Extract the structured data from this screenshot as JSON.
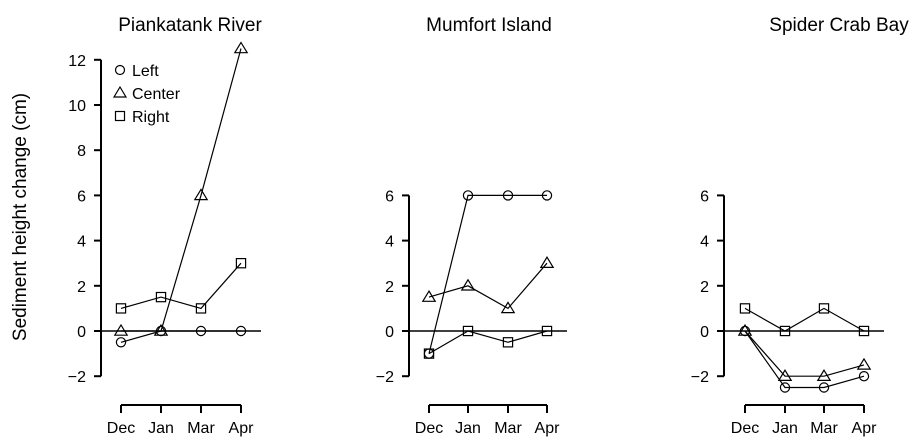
{
  "chart_data": [
    {
      "type": "line",
      "title": "Piankatank River",
      "ylabel": "Sediment height change (cm)",
      "categories": [
        "Dec",
        "Jan",
        "Mar",
        "Apr"
      ],
      "yticks": [
        -2,
        0,
        2,
        4,
        6,
        8,
        10,
        12
      ],
      "ylim": [
        -2,
        12.5
      ],
      "zero_line": true,
      "legend": {
        "placement": "top-left",
        "entries": [
          {
            "label": "Left",
            "marker": "circle"
          },
          {
            "label": "Center",
            "marker": "triangle"
          },
          {
            "label": "Right",
            "marker": "square"
          }
        ]
      },
      "series": [
        {
          "name": "Left",
          "marker": "circle",
          "values": [
            -0.5,
            0,
            0,
            0
          ]
        },
        {
          "name": "Center",
          "marker": "triangle",
          "values": [
            0,
            0,
            6,
            12.5
          ]
        },
        {
          "name": "Right",
          "marker": "square",
          "values": [
            1,
            1.5,
            1,
            3
          ]
        }
      ]
    },
    {
      "type": "line",
      "title": "Mumfort Island",
      "categories": [
        "Dec",
        "Jan",
        "Mar",
        "Apr"
      ],
      "yticks": [
        -2,
        0,
        2,
        4,
        6
      ],
      "ylim": [
        -2,
        6
      ],
      "zero_line": true,
      "series": [
        {
          "name": "Left",
          "marker": "circle",
          "values": [
            -1,
            6,
            6,
            6
          ]
        },
        {
          "name": "Center",
          "marker": "triangle",
          "values": [
            1.5,
            2,
            1,
            3
          ]
        },
        {
          "name": "Right",
          "marker": "square",
          "values": [
            -1,
            0,
            -0.5,
            0
          ]
        }
      ]
    },
    {
      "type": "line",
      "title": "Spider Crab Bay",
      "categories": [
        "Dec",
        "Jan",
        "Mar",
        "Apr"
      ],
      "yticks": [
        -2,
        0,
        2,
        4,
        6
      ],
      "ylim": [
        -2,
        6
      ],
      "zero_line": true,
      "series": [
        {
          "name": "Left",
          "marker": "circle",
          "values": [
            0,
            -2.5,
            -2.5,
            -2
          ]
        },
        {
          "name": "Center",
          "marker": "triangle",
          "values": [
            0,
            -2,
            -2,
            -1.5
          ]
        },
        {
          "name": "Right",
          "marker": "square",
          "values": [
            1,
            0,
            1,
            0
          ]
        }
      ]
    }
  ]
}
